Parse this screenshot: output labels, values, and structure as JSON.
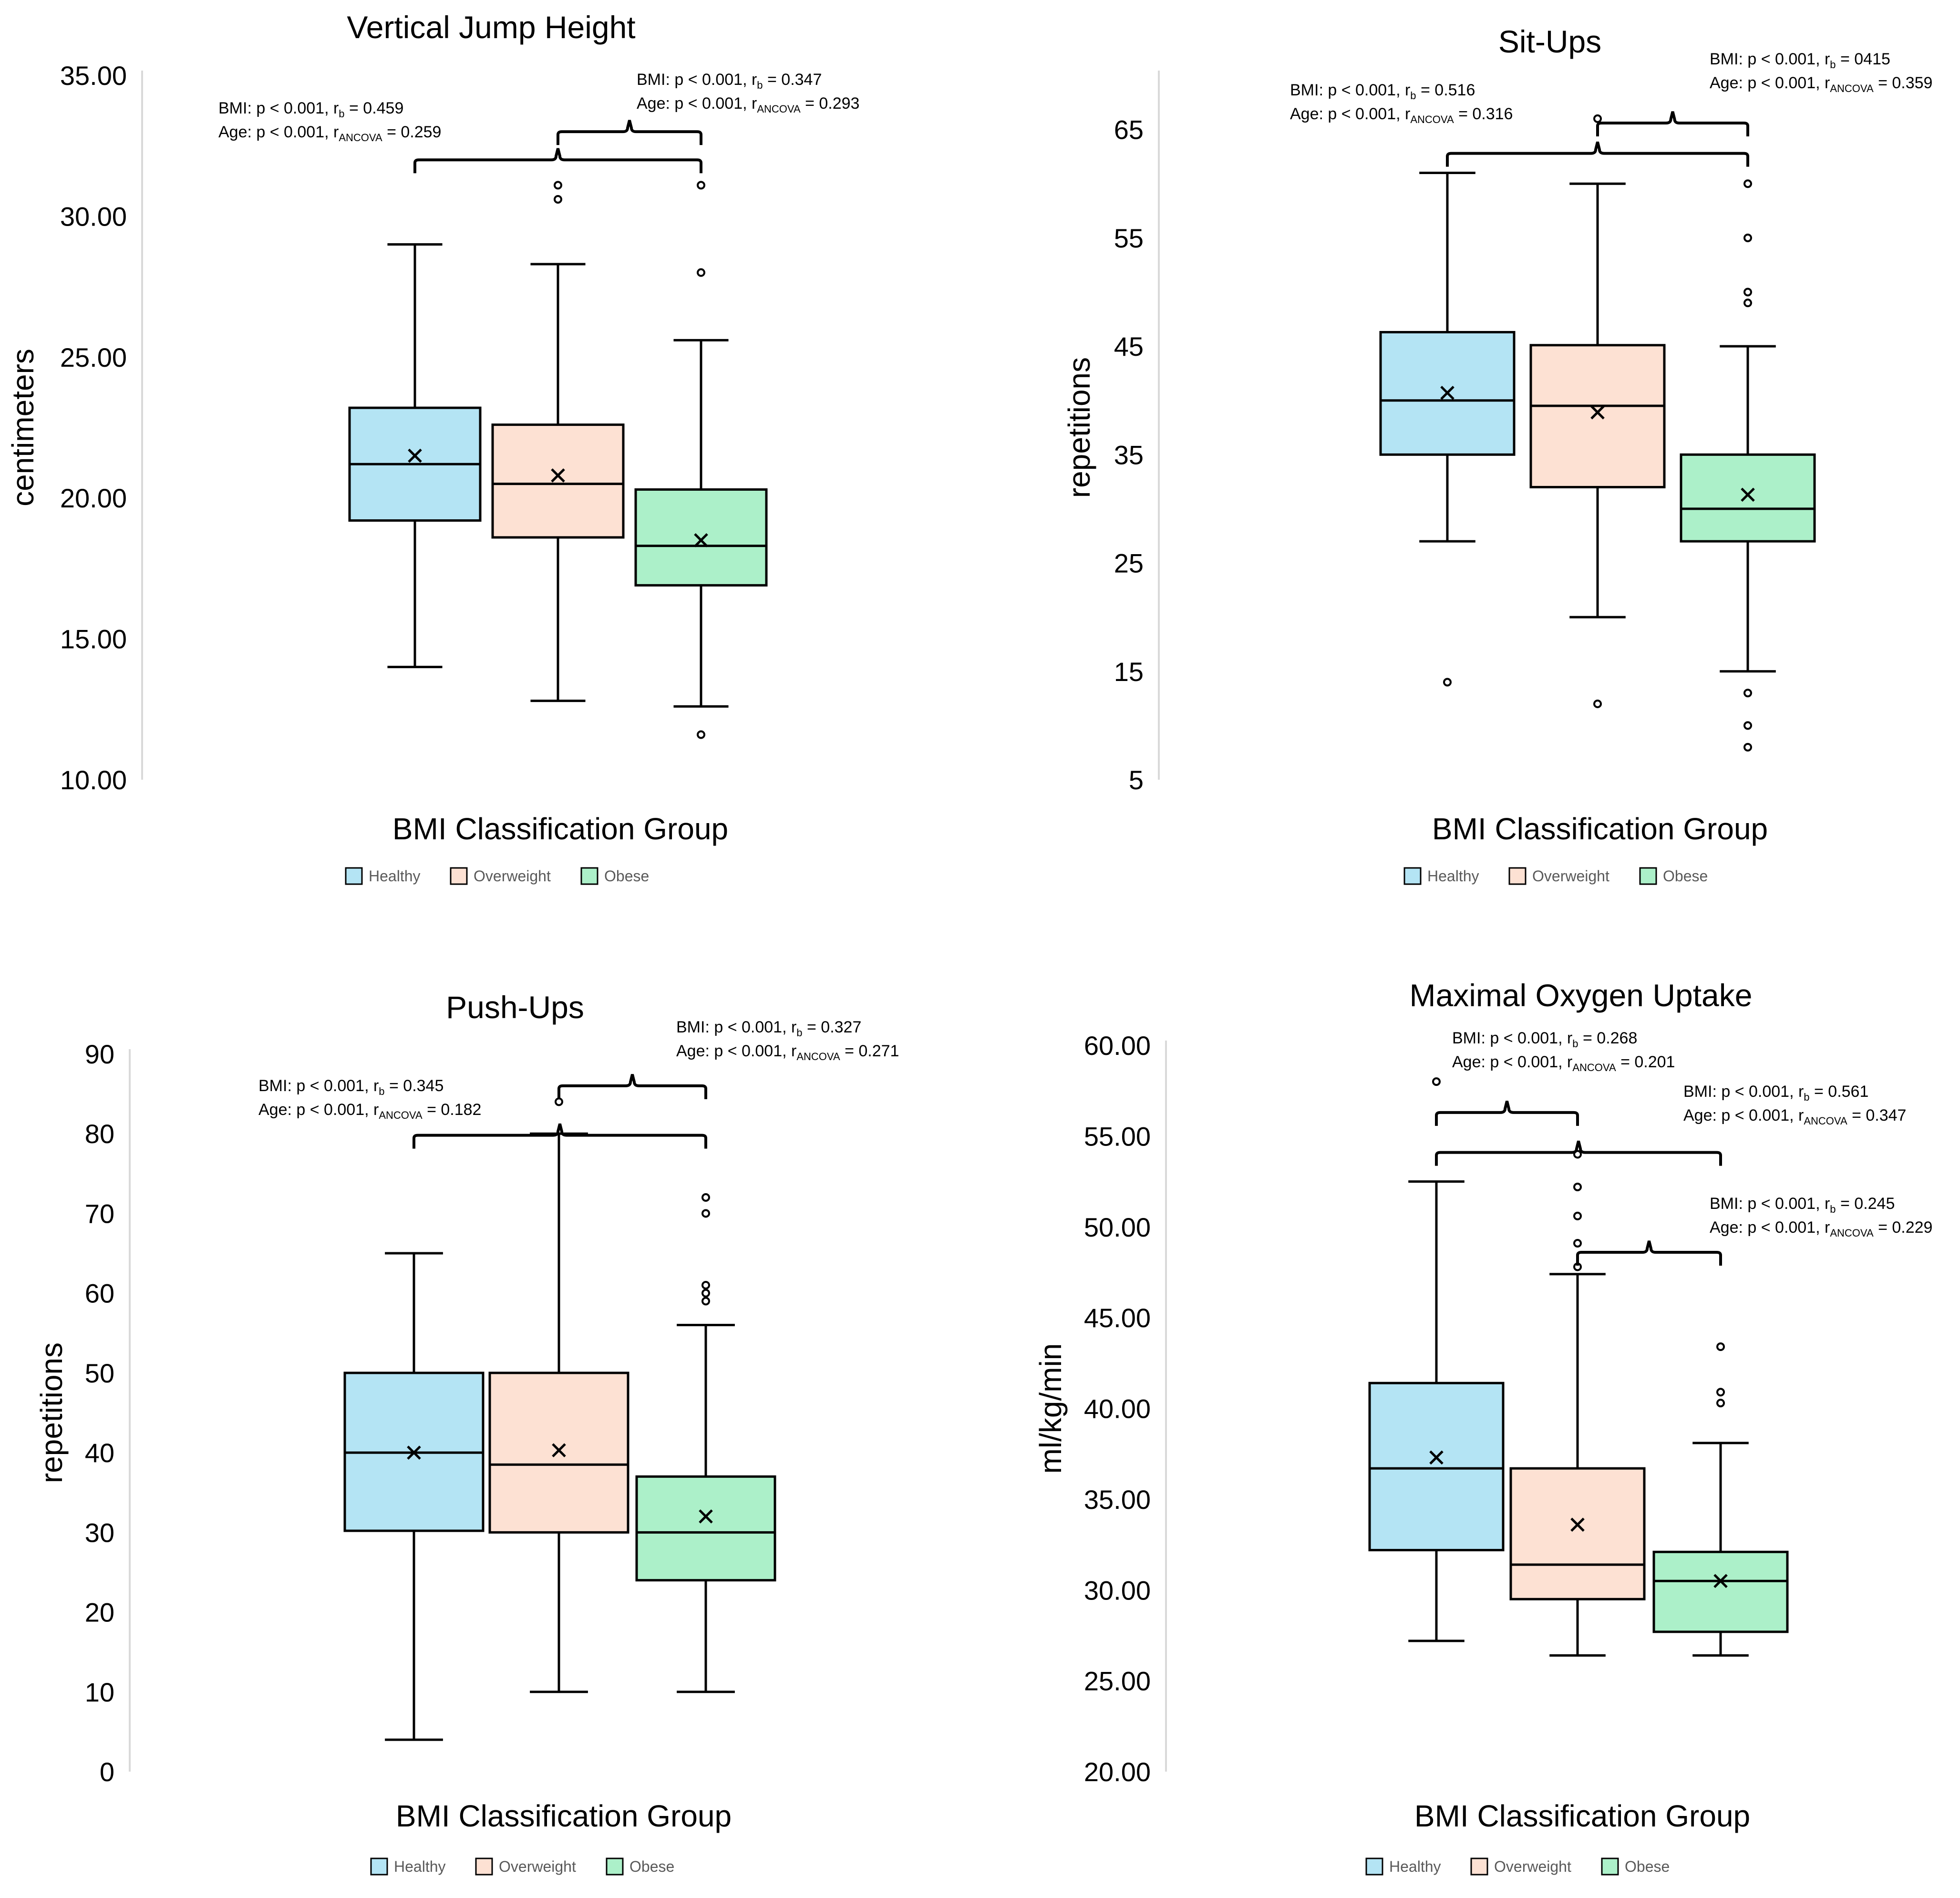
{
  "colors": {
    "Healthy": "#b4e4f4",
    "Overweight": "#fde1d3",
    "Obese": "#acf0c9",
    "axis": "#d9d9d9",
    "stroke": "#000000"
  },
  "chart_data": [
    {
      "type": "box",
      "title": "Vertical Jump Height",
      "xlabel": "BMI Classification Group",
      "ylabel": "centimeters",
      "ylim": [
        10,
        35
      ],
      "yticks": [
        10,
        15,
        20,
        25,
        30,
        35
      ],
      "ytick_labels": [
        "10.00",
        "15.00",
        "20.00",
        "25.00",
        "30.00",
        "35.00"
      ],
      "legend": [
        "Healthy",
        "Overweight",
        "Obese"
      ],
      "groups": [
        {
          "name": "Healthy",
          "min": 14.0,
          "q1": 19.2,
          "median": 21.2,
          "q3": 23.2,
          "max": 29.0,
          "mean": 21.5,
          "outliers": []
        },
        {
          "name": "Overweight",
          "min": 12.8,
          "q1": 18.6,
          "median": 20.5,
          "q3": 22.6,
          "max": 28.3,
          "mean": 20.8,
          "outliers": [
            30.6,
            31.1
          ]
        },
        {
          "name": "Obese",
          "min": 12.6,
          "q1": 16.9,
          "median": 18.3,
          "q3": 20.3,
          "max": 25.6,
          "mean": 18.5,
          "outliers": [
            11.6,
            28.0,
            31.1
          ]
        }
      ],
      "annotations": [
        {
          "lines": [
            {
              "pre": "BMI: p < 0.001, r",
              "sub": "b",
              "post": " = 0.459"
            },
            {
              "pre": "Age: p < 0.001, r",
              "sub": "ANCOVA",
              "post": " = 0.259"
            }
          ],
          "from": 0,
          "to": 2,
          "y": 32.0
        },
        {
          "lines": [
            {
              "pre": "BMI: p < 0.001, r",
              "sub": "b",
              "post": " = 0.347"
            },
            {
              "pre": "Age: p < 0.001, r",
              "sub": "ANCOVA",
              "post": " = 0.293"
            }
          ],
          "from": 1,
          "to": 2,
          "y": 33.0
        }
      ]
    },
    {
      "type": "box",
      "title": "Sit-Ups",
      "xlabel": "BMI Classification Group",
      "ylabel": "repetitions",
      "ylim": [
        5,
        70
      ],
      "yticks": [
        5,
        15,
        25,
        35,
        45,
        55,
        65
      ],
      "ytick_labels": [
        "5",
        "15",
        "25",
        "35",
        "45",
        "55",
        "65"
      ],
      "legend": [
        "Healthy",
        "Overweight",
        "Obese"
      ],
      "groups": [
        {
          "name": "Healthy",
          "min": 27,
          "q1": 35,
          "median": 40,
          "q3": 46.3,
          "max": 61,
          "mean": 40.7,
          "outliers": [
            14
          ]
        },
        {
          "name": "Overweight",
          "min": 20,
          "q1": 32,
          "median": 39.5,
          "q3": 45.1,
          "max": 60,
          "mean": 38.9,
          "outliers": [
            12,
            66
          ]
        },
        {
          "name": "Obese",
          "min": 15,
          "q1": 27,
          "median": 30,
          "q3": 35,
          "max": 45,
          "mean": 31.3,
          "outliers": [
            8,
            10,
            13,
            49,
            50,
            55,
            60
          ]
        }
      ],
      "annotations": [
        {
          "lines": [
            {
              "pre": "BMI: p < 0.001, r",
              "sub": "b",
              "post": " = 0.516"
            },
            {
              "pre": "Age: p < 0.001, r",
              "sub": "ANCOVA",
              "post": " = 0.316"
            }
          ],
          "from": 0,
          "to": 2,
          "y": 62.8
        },
        {
          "lines": [
            {
              "pre": "BMI: p < 0.001, r",
              "sub": "b",
              "post": " = 0415"
            },
            {
              "pre": "Age: p < 0.001, r",
              "sub": "ANCOVA",
              "post": " = 0.359"
            }
          ],
          "from": 1,
          "to": 2,
          "y": 65.6
        }
      ]
    },
    {
      "type": "box",
      "title": "Push-Ups",
      "xlabel": "BMI Classification Group",
      "ylabel": "repetitions",
      "ylim": [
        0,
        90
      ],
      "yticks": [
        0,
        10,
        20,
        30,
        40,
        50,
        60,
        70,
        80,
        90
      ],
      "ytick_labels": [
        "0",
        "10",
        "20",
        "30",
        "40",
        "50",
        "60",
        "70",
        "80",
        "90"
      ],
      "legend": [
        "Healthy",
        "Overweight",
        "Obese"
      ],
      "groups": [
        {
          "name": "Healthy",
          "min": 4,
          "q1": 30.2,
          "median": 40,
          "q3": 50,
          "max": 65,
          "mean": 40,
          "outliers": []
        },
        {
          "name": "Overweight",
          "min": 10,
          "q1": 30,
          "median": 38.5,
          "q3": 50,
          "max": 80,
          "mean": 40.3,
          "outliers": [
            84
          ]
        },
        {
          "name": "Obese",
          "min": 10,
          "q1": 24,
          "median": 30,
          "q3": 37,
          "max": 56,
          "mean": 32,
          "outliers": [
            59,
            60,
            61,
            70,
            72
          ]
        }
      ],
      "annotations": [
        {
          "lines": [
            {
              "pre": "BMI: p < 0.001, r",
              "sub": "b",
              "post": " = 0.345"
            },
            {
              "pre": "Age: p < 0.001, r",
              "sub": "ANCOVA",
              "post": " = 0.182"
            }
          ],
          "from": 0,
          "to": 2,
          "y": 79.8
        },
        {
          "lines": [
            {
              "pre": "BMI: p < 0.001, r",
              "sub": "b",
              "post": " = 0.327"
            },
            {
              "pre": "Age: p < 0.001, r",
              "sub": "ANCOVA",
              "post": " = 0.271"
            }
          ],
          "from": 1,
          "to": 2,
          "y": 86.0
        }
      ]
    },
    {
      "type": "box",
      "title": "Maximal Oxygen Uptake",
      "xlabel": "BMI Classification Group",
      "ylabel": "ml/kg/min",
      "ylim": [
        20,
        60
      ],
      "yticks": [
        20,
        25,
        30,
        35,
        40,
        45,
        50,
        55,
        60
      ],
      "ytick_labels": [
        "20.00",
        "25.00",
        "30.00",
        "35.00",
        "40.00",
        "45.00",
        "50.00",
        "55.00",
        "60.00"
      ],
      "legend": [
        "Healthy",
        "Overweight",
        "Obese"
      ],
      "groups": [
        {
          "name": "Healthy",
          "min": 27.2,
          "q1": 32.2,
          "median": 36.7,
          "q3": 41.4,
          "max": 52.5,
          "mean": 37.3,
          "outliers": [
            58.0
          ]
        },
        {
          "name": "Overweight",
          "min": 26.4,
          "q1": 29.5,
          "median": 31.4,
          "q3": 36.7,
          "max": 47.4,
          "mean": 33.6,
          "outliers": [
            47.8,
            49.1,
            50.6,
            52.2,
            54.0
          ]
        },
        {
          "name": "Obese",
          "min": 26.4,
          "q1": 27.7,
          "median": 30.5,
          "q3": 32.1,
          "max": 38.1,
          "mean": 30.5,
          "outliers": [
            40.3,
            40.9,
            43.4
          ]
        }
      ],
      "annotations": [
        {
          "lines": [
            {
              "pre": "BMI: p < 0.001, r",
              "sub": "b",
              "post": " = 0.268"
            },
            {
              "pre": "Age: p < 0.001, r",
              "sub": "ANCOVA",
              "post": " = 0.201"
            }
          ],
          "from": 0,
          "to": 1,
          "y": 56.3
        },
        {
          "lines": [
            {
              "pre": "BMI: p < 0.001, r",
              "sub": "b",
              "post": " = 0.561"
            },
            {
              "pre": "Age: p < 0.001, r",
              "sub": "ANCOVA",
              "post": " = 0.347"
            }
          ],
          "from": 0,
          "to": 2,
          "y": 54.1
        },
        {
          "lines": [
            {
              "pre": "BMI: p < 0.001, r",
              "sub": "b",
              "post": " = 0.245"
            },
            {
              "pre": "Age: p < 0.001, r",
              "sub": "ANCOVA",
              "post": " = 0.229"
            }
          ],
          "from": 1,
          "to": 2,
          "y": 48.6
        }
      ]
    }
  ]
}
